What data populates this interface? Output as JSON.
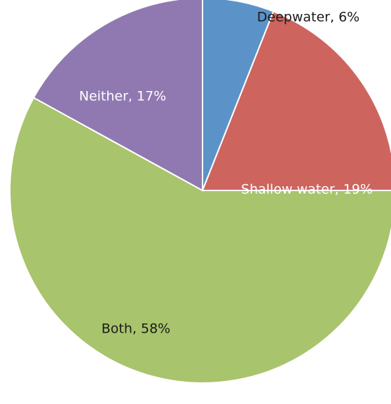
{
  "chart_data": {
    "type": "pie",
    "title": "",
    "slices": [
      {
        "label": "Deepwater",
        "value": 6,
        "value_label": "6%",
        "color": "#5B93C9",
        "label_color": "#1a1a1a",
        "label_position": "outside-top"
      },
      {
        "label": "Shallow water",
        "value": 19,
        "value_label": "19%",
        "color": "#CD645E",
        "label_color": "#ffffff",
        "label_position": "inside"
      },
      {
        "label": "Both",
        "value": 58,
        "value_label": "58%",
        "color": "#A8C46C",
        "label_color": "#1a1a1a",
        "label_position": "inside"
      },
      {
        "label": "Neither",
        "value": 17,
        "value_label": "17%",
        "color": "#9079B0",
        "label_color": "#ffffff",
        "label_position": "inside"
      }
    ],
    "start_angle": "12 o'clock",
    "direction": "clockwise",
    "legend": "none"
  }
}
